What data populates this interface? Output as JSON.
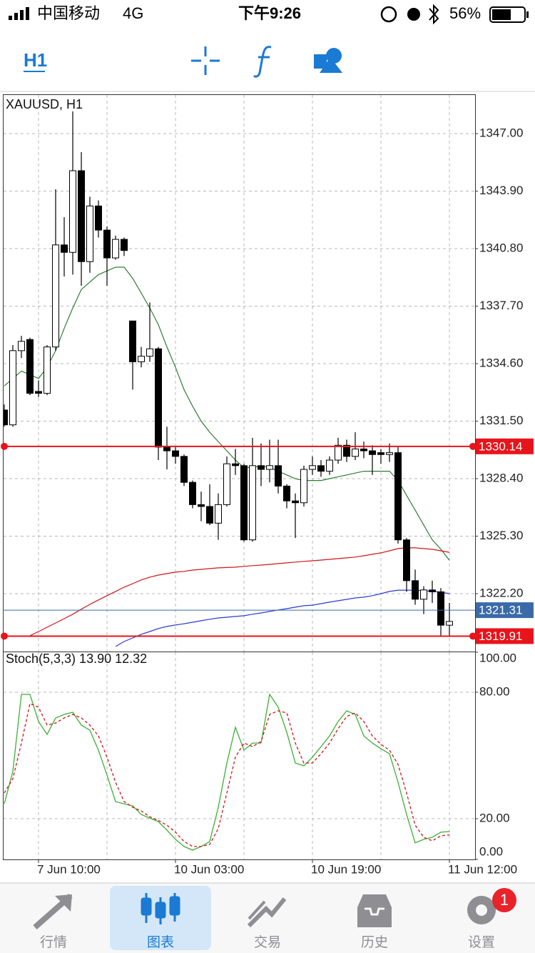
{
  "status_bar": {
    "carrier": "中国移动",
    "network": "4G",
    "time": "下午9:26",
    "battery": "56%"
  },
  "toolbar": {
    "timeframe": "H1"
  },
  "chart_data": [
    {
      "type": "candlestick",
      "title": "XAUUSD, H1",
      "categories": [
        null,
        null,
        null,
        null,
        "7 Jun 10:00",
        null,
        null,
        null,
        null,
        null,
        null,
        null,
        null,
        null,
        null,
        null,
        null,
        null,
        null,
        null,
        "10 Jun 03:00",
        null,
        null,
        null,
        null,
        null,
        null,
        null,
        null,
        null,
        null,
        null,
        null,
        null,
        null,
        null,
        "10 Jun 19:00",
        null,
        null,
        null,
        null,
        null,
        null,
        null,
        null,
        null,
        null,
        null,
        null,
        null,
        null,
        null,
        "11 Jun 12:00"
      ],
      "open": [
        1332.1,
        1331.3,
        1335.3,
        1335.9,
        1333.1,
        1333.0,
        1335.5,
        1341.0,
        1340.6,
        1345.0,
        1340.1,
        1343.1,
        1341.8,
        1340.3,
        1341.3,
        1336.9,
        1334.7,
        1335.0,
        1335.4,
        1330.1,
        1329.9,
        1329.6,
        1328.2,
        1327.0,
        1326.9,
        1326.0,
        1327.0,
        1329.2,
        1329.1,
        1325.1,
        1329.1,
        1328.9,
        1329.1,
        1328.0,
        1327.2,
        1327.1,
        1328.9,
        1329.1,
        1328.8,
        1329.4,
        1330.2,
        1329.6,
        1330.0,
        1329.9,
        1329.8,
        1329.7,
        1329.8,
        1325.1,
        1322.9,
        1321.9,
        1322.4,
        1322.3,
        1320.5
      ],
      "high": [
        1332.4,
        1335.6,
        1336.1,
        1336.0,
        1333.7,
        1335.6,
        1344.0,
        1342.5,
        1348.2,
        1346.0,
        1343.6,
        1343.4,
        1342.0,
        1341.5,
        1341.4,
        1336.9,
        1335.5,
        1337.9,
        1335.5,
        1331.2,
        1330.1,
        1329.7,
        1328.3,
        1327.7,
        1328.1,
        1327.6,
        1329.6,
        1330.0,
        1329.2,
        1330.6,
        1330.3,
        1330.5,
        1330.5,
        1328.1,
        1327.6,
        1329.1,
        1329.6,
        1329.4,
        1329.6,
        1330.6,
        1330.5,
        1330.9,
        1330.4,
        1330.2,
        1330.0,
        1330.3,
        1330.1,
        1325.2,
        1323.5,
        1322.6,
        1322.9,
        1322.5,
        1321.7
      ],
      "low": [
        1331.2,
        1331.2,
        1334.9,
        1332.9,
        1332.8,
        1332.9,
        1335.3,
        1339.3,
        1339.4,
        1338.8,
        1339.5,
        1341.4,
        1338.8,
        1340.2,
        1340.4,
        1333.2,
        1334.4,
        1334.7,
        1329.4,
        1328.9,
        1329.2,
        1328.0,
        1326.8,
        1326.1,
        1325.9,
        1325.1,
        1326.9,
        1328.6,
        1325.0,
        1325.0,
        1328.0,
        1328.2,
        1327.6,
        1326.8,
        1325.2,
        1326.9,
        1328.6,
        1328.5,
        1328.6,
        1329.2,
        1329.3,
        1329.4,
        1329.5,
        1328.6,
        1329.2,
        1329.3,
        1324.9,
        1322.3,
        1321.6,
        1321.1,
        1321.7,
        1319.9,
        1319.9
      ],
      "close": [
        1331.3,
        1335.3,
        1335.8,
        1333.0,
        1333.0,
        1335.5,
        1341.0,
        1340.6,
        1345.0,
        1340.1,
        1343.1,
        1341.8,
        1340.3,
        1341.3,
        1340.7,
        1334.7,
        1335.0,
        1335.4,
        1330.1,
        1329.9,
        1329.6,
        1328.2,
        1327.0,
        1326.9,
        1326.0,
        1327.0,
        1329.2,
        1329.1,
        1325.1,
        1329.1,
        1328.9,
        1329.1,
        1328.0,
        1327.2,
        1327.1,
        1328.9,
        1329.1,
        1328.8,
        1329.4,
        1330.2,
        1329.6,
        1330.0,
        1329.9,
        1329.7,
        1329.7,
        1329.8,
        1325.1,
        1322.9,
        1321.9,
        1322.4,
        1322.3,
        1320.5,
        1320.7
      ],
      "up_color": "#ffffff",
      "down_color": "#000000",
      "lines": [
        {
          "color": "#2e7d32",
          "values": [
            1333.4,
            1333.8,
            1334.2,
            1334.0,
            1333.8,
            1334.4,
            1335.3,
            1336.5,
            1337.6,
            1338.6,
            1339.0,
            1339.4,
            1339.6,
            1339.8,
            1339.8,
            1339.2,
            1338.4,
            1337.6,
            1336.7,
            1335.5,
            1334.4,
            1333.2,
            1332.3,
            1331.5,
            1330.9,
            1330.4,
            1329.9,
            1329.4,
            1329.0,
            1329.0,
            1329.1,
            1329.0,
            1328.8,
            1328.6,
            1328.4,
            1328.3,
            1328.3,
            1328.3,
            1328.4,
            1328.5,
            1328.6,
            1328.7,
            1328.8,
            1328.8,
            1328.8,
            1328.8,
            1328.3,
            1327.5,
            1326.7,
            1325.9,
            1325.1,
            1324.6,
            1324.0
          ]
        },
        {
          "color": "#d0161b",
          "values": [
            null,
            null,
            null,
            1319.93,
            1320.16,
            1320.39,
            1320.62,
            1320.85,
            1321.09,
            1321.36,
            1321.62,
            1321.86,
            1322.09,
            1322.32,
            1322.55,
            1322.74,
            1322.94,
            1323.09,
            1323.2,
            1323.28,
            1323.36,
            1323.4,
            1323.47,
            1323.51,
            1323.55,
            1323.59,
            1323.61,
            1323.63,
            1323.67,
            1323.71,
            1323.74,
            1323.78,
            1323.82,
            1323.86,
            1323.9,
            1323.94,
            1323.97,
            1324.01,
            1324.05,
            1324.09,
            1324.13,
            1324.17,
            1324.24,
            1324.32,
            1324.4,
            1324.51,
            1324.63,
            1324.67,
            1324.67,
            1324.63,
            1324.59,
            1324.51,
            1324.43
          ]
        },
        {
          "color": "#2b3bd0",
          "values": [
            null,
            null,
            null,
            null,
            null,
            null,
            null,
            null,
            null,
            null,
            null,
            null,
            null,
            1319.35,
            1319.62,
            1319.81,
            1320.01,
            1320.16,
            1320.32,
            1320.43,
            1320.51,
            1320.58,
            1320.66,
            1320.74,
            1320.82,
            1320.89,
            1320.93,
            1320.97,
            1321.01,
            1321.09,
            1321.16,
            1321.24,
            1321.32,
            1321.39,
            1321.47,
            1321.55,
            1321.58,
            1321.66,
            1321.74,
            1321.82,
            1321.89,
            1321.97,
            1322.01,
            1322.09,
            1322.2,
            1322.32,
            1322.39,
            1322.39,
            1322.39,
            1322.36,
            1322.32,
            1322.28,
            1322.2
          ]
        }
      ],
      "price_lines": [
        {
          "value": 1330.14,
          "color": "#e8141b"
        },
        {
          "value": 1321.31,
          "color": "#3a6aa8"
        },
        {
          "value": 1319.91,
          "color": "#e8141b"
        }
      ],
      "ylim": [
        1319.08,
        1349.12
      ],
      "yticks": [
        {
          "value": 1347,
          "label": "1347.00"
        },
        {
          "value": 1343.9,
          "label": "1343.90"
        },
        {
          "value": 1340.8,
          "label": "1340.80"
        },
        {
          "value": 1337.7,
          "label": "1337.70"
        },
        {
          "value": 1334.6,
          "label": "1334.60"
        },
        {
          "value": 1331.5,
          "label": "1331.50"
        },
        {
          "value": 1328.4,
          "label": "1328.40"
        },
        {
          "value": 1325.3,
          "label": "1325.30"
        },
        {
          "value": 1322.2,
          "label": "1322.20"
        }
      ],
      "grid": true
    },
    {
      "type": "oscillator",
      "title": "Stoch(5,3,3) 13.90 12.32",
      "series": [
        {
          "color": "#3cb034",
          "dashed": false,
          "values": [
            27.1,
            42.4,
            79.0,
            79.0,
            66.1,
            60.0,
            67.8,
            69.5,
            70.5,
            64.4,
            62.0,
            52.5,
            40.7,
            28.1,
            27.1,
            26.1,
            22.0,
            20.3,
            18.6,
            14.6,
            10.2,
            6.8,
            5.1,
            6.8,
            9.2,
            25.4,
            46.4,
            63.4,
            52.5,
            55.9,
            55.9,
            79.0,
            72.9,
            61.0,
            46.4,
            45.1,
            49.2,
            54.2,
            59.3,
            66.1,
            71.2,
            69.5,
            59.3,
            55.9,
            53.2,
            50.8,
            37.3,
            22.0,
            8.5,
            10.2,
            11.2,
            13.6,
            13.9
          ]
        },
        {
          "color": "#d0161b",
          "dashed": true,
          "values": [
            32.2,
            39.0,
            55.9,
            74.6,
            72.9,
            64.4,
            65.4,
            67.8,
            69.5,
            67.8,
            64.4,
            59.3,
            49.2,
            37.3,
            28.1,
            25.4,
            23.7,
            20.9,
            19.2,
            16.9,
            13.6,
            9.2,
            6.8,
            6.8,
            7.8,
            15.3,
            32.2,
            49.2,
            55.9,
            54.2,
            56.6,
            69.5,
            71.2,
            70.2,
            55.9,
            46.4,
            46.4,
            50.8,
            55.9,
            62.7,
            68.5,
            70.2,
            66.1,
            59.3,
            55.3,
            52.5,
            45.8,
            32.2,
            16.9,
            11.2,
            9.5,
            11.9,
            12.3
          ]
        }
      ],
      "ylim": [
        0,
        100
      ],
      "yticks": [
        {
          "value": 100,
          "label": "100.00"
        },
        {
          "value": 80,
          "label": "80.00"
        },
        {
          "value": 20,
          "label": "20.00"
        },
        {
          "value": 0,
          "label": "0.00"
        }
      ],
      "grid": true
    }
  ],
  "tab_bar": {
    "tabs": [
      "行情",
      "图表",
      "交易",
      "历史",
      "设置"
    ],
    "active": 1,
    "badge": 1
  }
}
